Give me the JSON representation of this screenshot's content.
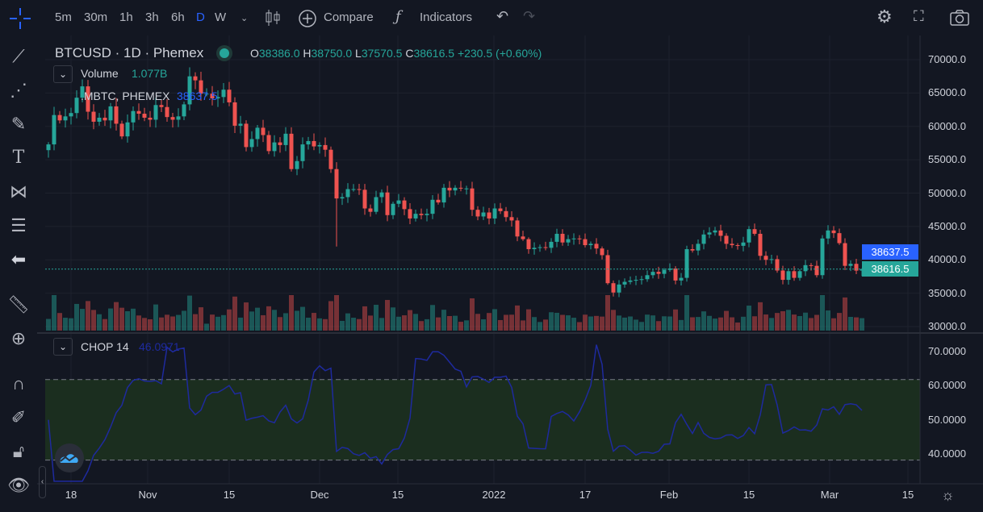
{
  "toolbar": {
    "timeframes": [
      "5m",
      "30m",
      "1h",
      "3h",
      "6h",
      "D",
      "W"
    ],
    "active_timeframe": "D",
    "compare": "Compare",
    "indicators": "Indicators"
  },
  "legend": {
    "symbol": "BTCUSD · 1D · Phemex",
    "open_label": "O",
    "open": "38386.0",
    "high_label": "H",
    "high": "38750.0",
    "low_label": "L",
    "low": "37570.5",
    "close_label": "C",
    "close": "38616.5",
    "change": "+230.5 (+0.60%)",
    "volume_label": "Volume",
    "volume_value": "1.077B",
    "compare_symbol": ".MBTC, PHEMEX",
    "compare_value": "38637.5"
  },
  "chop": {
    "label": "CHOP 14",
    "value": "46.0971",
    "upper_band": 61.8,
    "lower_band": 38.2,
    "axis": [
      "70.0000",
      "60.0000",
      "50.0000",
      "40.0000"
    ]
  },
  "price_axis": [
    "70000.0",
    "65000.0",
    "60000.0",
    "55000.0",
    "50000.0",
    "45000.0",
    "40000.0",
    "35000.0",
    "30000.0"
  ],
  "price_labels": {
    "compare": "38637.5",
    "last": "38616.5"
  },
  "time_axis": [
    "18",
    "Nov",
    "15",
    "Dec",
    "15",
    "2022",
    "17",
    "Feb",
    "15",
    "Mar",
    "15"
  ],
  "colors": {
    "up": "#26a69a",
    "down": "#ef5350",
    "chop_line": "#1e2a9e",
    "compare_label": "#2962ff",
    "band_fill": "#1b2e1f",
    "background": "#131722"
  },
  "chart_data": {
    "type": "candlestick",
    "symbol": "BTCUSD",
    "interval": "1D",
    "start": "2021-10-14",
    "end": "2022-03-07",
    "ylim": [
      30000,
      72000
    ],
    "close": [
      57300,
      61700,
      60900,
      61500,
      62000,
      64300,
      66000,
      62200,
      60700,
      61300,
      60900,
      63000,
      60400,
      58500,
      60600,
      62300,
      61900,
      61300,
      61000,
      63200,
      62900,
      61400,
      61000,
      61500,
      63300,
      67500,
      66900,
      64900,
      64900,
      64200,
      64400,
      65500,
      63600,
      60100,
      60400,
      56900,
      58100,
      59800,
      58700,
      56300,
      57600,
      57200,
      58900,
      53600,
      54800,
      57300,
      57800,
      57000,
      57200,
      56500,
      53600,
      49200,
      49400,
      50600,
      50600,
      50500,
      47700,
      47200,
      49400,
      50100,
      46700,
      48400,
      48900,
      47600,
      46200,
      46900,
      46700,
      46900,
      49000,
      48600,
      50800,
      50400,
      50800,
      50700,
      50700,
      47500,
      46500,
      47100,
      46200,
      47700,
      47300,
      46400,
      45900,
      43500,
      43100,
      41600,
      41800,
      41900,
      41800,
      42700,
      43900,
      42600,
      43100,
      43200,
      43100,
      42200,
      42400,
      41700,
      40700,
      36500,
      35100,
      36300,
      36700,
      36900,
      37000,
      37100,
      37700,
      38200,
      37900,
      38500,
      38700,
      36900,
      37300,
      41600,
      41400,
      42400,
      43800,
      44100,
      44400,
      43600,
      42400,
      42200,
      42100,
      42600,
      44600,
      43900,
      40600,
      40000,
      40100,
      38400,
      37000,
      38300,
      37300,
      38300,
      39200,
      39100,
      37700,
      43200,
      44400,
      44000,
      42500,
      39100,
      39400,
      38386,
      38616.5
    ]
  }
}
